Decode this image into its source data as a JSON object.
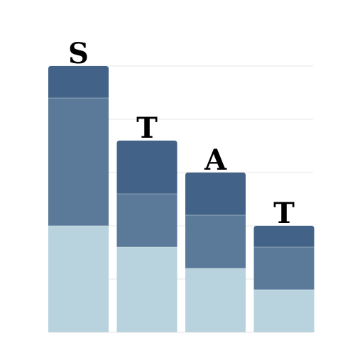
{
  "chart_data": {
    "type": "bar",
    "stacked": true,
    "categories": [
      "S",
      "T",
      "A",
      "T"
    ],
    "series": [
      {
        "values": [
          20,
          16,
          12,
          8
        ],
        "color": "#b8d3dd"
      },
      {
        "values": [
          24,
          10,
          10,
          8
        ],
        "color": "#5b7a99"
      },
      {
        "values": [
          6,
          10,
          8,
          4
        ],
        "color": "#426387"
      }
    ],
    "ylim": [
      0,
      50
    ],
    "grid": true,
    "axes_visible": false
  }
}
